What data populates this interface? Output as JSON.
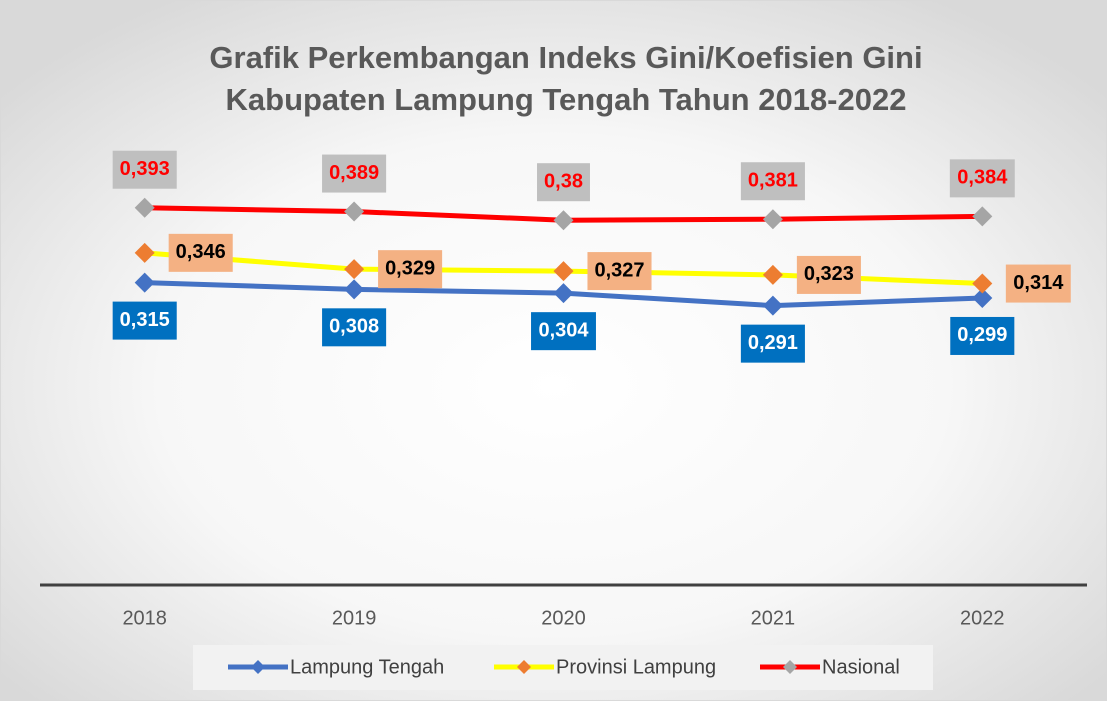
{
  "chart_data": {
    "type": "line",
    "title": [
      "Grafik Perkembangan Indeks Gini/Koefisien Gini",
      "Kabupaten Lampung Tengah Tahun 2018-2022"
    ],
    "categories": [
      "2018",
      "2019",
      "2020",
      "2021",
      "2022"
    ],
    "ylim": [
      0,
      0.45
    ],
    "series": [
      {
        "name": "Lampung Tengah",
        "color": "#4472c4",
        "marker_color": "#4472c4",
        "label_position": "below",
        "label_color": "#0070c0",
        "label_text_color": "#ffffff",
        "values": [
          0.315,
          0.308,
          0.304,
          0.291,
          0.299
        ],
        "value_labels": [
          "0,315",
          "0,308",
          "0,304",
          "0,291",
          "0,299"
        ]
      },
      {
        "name": "Provinsi Lampung",
        "color": "#ffff00",
        "marker_color": "#ed7d31",
        "label_position": "right",
        "label_color": "#f4b183",
        "label_text_color": "#000000",
        "values": [
          0.346,
          0.329,
          0.327,
          0.323,
          0.314
        ],
        "value_labels": [
          "0,346",
          "0,329",
          "0,327",
          "0,323",
          "0,314"
        ]
      },
      {
        "name": "Nasional",
        "color": "#ff0000",
        "marker_color": "#a5a5a5",
        "label_position": "above",
        "label_color": "#bfbfbf",
        "label_text_color": "#ff0000",
        "values": [
          0.393,
          0.389,
          0.38,
          0.381,
          0.384
        ],
        "value_labels": [
          "0,393",
          "0,389",
          "0,38",
          "0,381",
          "0,384"
        ]
      }
    ]
  }
}
